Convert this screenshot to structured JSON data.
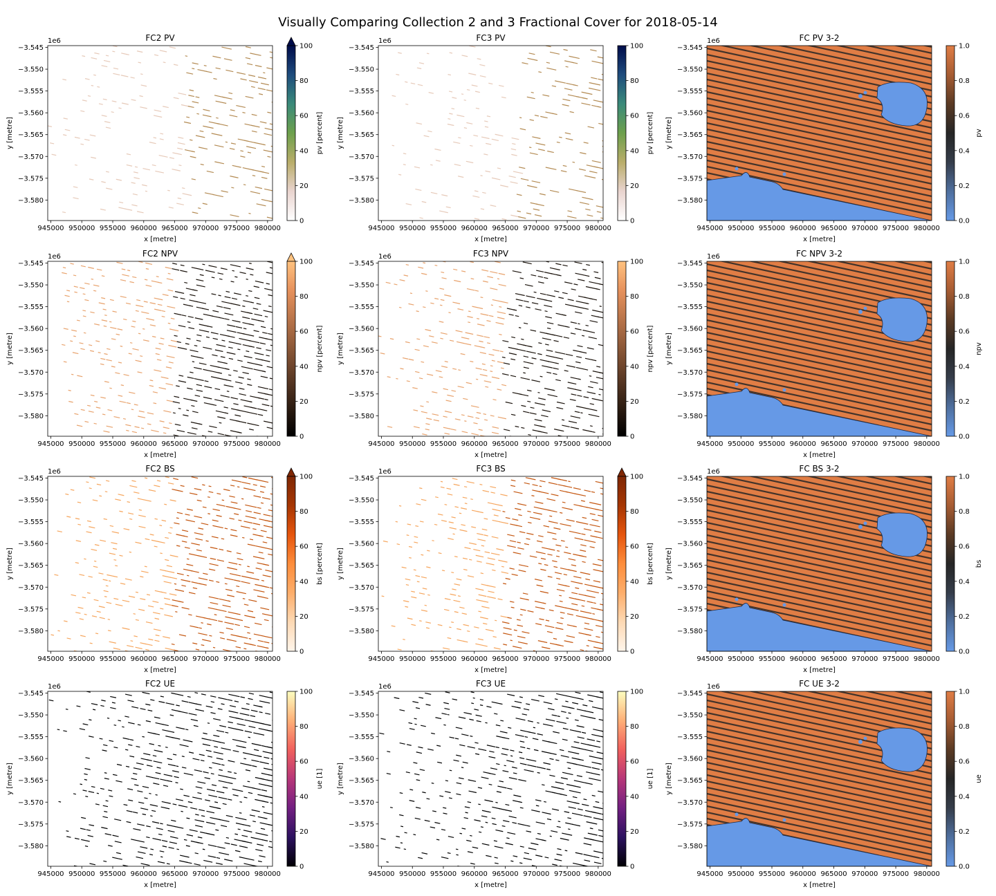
{
  "suptitle": "Visually Comparing Collection 2 and 3 Fractional Cover for 2018-05-14",
  "colors": {
    "diff_low": "#6699e6",
    "diff_mid": "#262626",
    "diff_high": "#e07d45",
    "axis": "#000000"
  },
  "chart_data": [
    {
      "type": "heatmap",
      "title": "FC2 PV",
      "xlabel": "x [metre]",
      "ylabel": "y [metre]",
      "offset_label": "1e6",
      "xlim": [
        944500,
        980800
      ],
      "ylim": [
        -3584700,
        -3544600
      ],
      "xticks": [
        945000,
        950000,
        955000,
        960000,
        965000,
        970000,
        975000,
        980000
      ],
      "xticklabels": [
        "945000",
        "950000",
        "955000",
        "960000",
        "965000",
        "970000",
        "975000",
        "980000"
      ],
      "yticks": [
        -3545,
        -3550,
        -3555,
        -3560,
        -3565,
        -3570,
        -3575,
        -3580
      ],
      "yticklabels": [
        "−3.545",
        "−3.550",
        "−3.555",
        "−3.560",
        "−3.565",
        "−3.570",
        "−3.575",
        "−3.580"
      ],
      "colorbar": {
        "label": "pv [percent]",
        "range": [
          0,
          100
        ],
        "ticks": [
          "0",
          "20",
          "40",
          "60",
          "80",
          "100"
        ],
        "extend": "max",
        "cmap": "gist_earth_r"
      }
    },
    {
      "type": "heatmap",
      "title": "FC3 PV",
      "xlabel": "x [metre]",
      "ylabel": "y [metre]",
      "offset_label": "1e6",
      "xlim": [
        944500,
        980800
      ],
      "ylim": [
        -3584700,
        -3544600
      ],
      "xticks": [
        945000,
        950000,
        955000,
        960000,
        965000,
        970000,
        975000,
        980000
      ],
      "xticklabels": [
        "945000",
        "950000",
        "955000",
        "960000",
        "965000",
        "970000",
        "975000",
        "980000"
      ],
      "yticks": [
        -3545,
        -3550,
        -3555,
        -3560,
        -3565,
        -3570,
        -3575,
        -3580
      ],
      "yticklabels": [
        "−3.545",
        "−3.550",
        "−3.555",
        "−3.560",
        "−3.565",
        "−3.570",
        "−3.575",
        "−3.580"
      ],
      "colorbar": {
        "label": "pv [percent]",
        "range": [
          0,
          100
        ],
        "ticks": [
          "0",
          "20",
          "40",
          "60",
          "80",
          "100"
        ],
        "extend": "neither",
        "cmap": "gist_earth_r"
      }
    },
    {
      "type": "heatmap",
      "title": "FC PV 3-2",
      "xlabel": "x [metre]",
      "ylabel": "y [metre]",
      "offset_label": "1e6",
      "xlim": [
        944500,
        980800
      ],
      "ylim": [
        -3584700,
        -3544600
      ],
      "xticks": [
        945000,
        950000,
        955000,
        960000,
        965000,
        970000,
        975000,
        980000
      ],
      "xticklabels": [
        "945000",
        "950000",
        "955000",
        "960000",
        "965000",
        "970000",
        "975000",
        "980000"
      ],
      "yticks": [
        -3545,
        -3550,
        -3555,
        -3560,
        -3565,
        -3570,
        -3575,
        -3580
      ],
      "yticklabels": [
        "−3.545",
        "−3.550",
        "−3.555",
        "−3.560",
        "−3.565",
        "−3.570",
        "−3.575",
        "−3.580"
      ],
      "colorbar": {
        "label": "pv",
        "range": [
          0,
          1
        ],
        "ticks": [
          "0.0",
          "0.2",
          "0.4",
          "0.6",
          "0.8",
          "1.0"
        ],
        "extend": "neither",
        "cmap": "diverging"
      }
    },
    {
      "type": "heatmap",
      "title": "FC2 NPV",
      "xlabel": "x [metre]",
      "ylabel": "y [metre]",
      "offset_label": "1e6",
      "xlim": [
        944500,
        980800
      ],
      "ylim": [
        -3584700,
        -3544600
      ],
      "xticks": [
        945000,
        950000,
        955000,
        960000,
        965000,
        970000,
        975000,
        980000
      ],
      "xticklabels": [
        "945000",
        "950000",
        "955000",
        "960000",
        "965000",
        "970000",
        "975000",
        "980000"
      ],
      "yticks": [
        -3545,
        -3550,
        -3555,
        -3560,
        -3565,
        -3570,
        -3575,
        -3580
      ],
      "yticklabels": [
        "−3.545",
        "−3.550",
        "−3.555",
        "−3.560",
        "−3.565",
        "−3.570",
        "−3.575",
        "−3.580"
      ],
      "colorbar": {
        "label": "npv [percent]",
        "range": [
          0,
          100
        ],
        "ticks": [
          "0",
          "20",
          "40",
          "60",
          "80",
          "100"
        ],
        "extend": "max",
        "cmap": "copper"
      }
    },
    {
      "type": "heatmap",
      "title": "FC3 NPV",
      "xlabel": "x [metre]",
      "ylabel": "y [metre]",
      "offset_label": "1e6",
      "xlim": [
        944500,
        980800
      ],
      "ylim": [
        -3584700,
        -3544600
      ],
      "xticks": [
        945000,
        950000,
        955000,
        960000,
        965000,
        970000,
        975000,
        980000
      ],
      "xticklabels": [
        "945000",
        "950000",
        "955000",
        "960000",
        "965000",
        "970000",
        "975000",
        "980000"
      ],
      "yticks": [
        -3545,
        -3550,
        -3555,
        -3560,
        -3565,
        -3570,
        -3575,
        -3580
      ],
      "yticklabels": [
        "−3.545",
        "−3.550",
        "−3.555",
        "−3.560",
        "−3.565",
        "−3.570",
        "−3.575",
        "−3.580"
      ],
      "colorbar": {
        "label": "npv [percent]",
        "range": [
          0,
          100
        ],
        "ticks": [
          "0",
          "20",
          "40",
          "60",
          "80",
          "100"
        ],
        "extend": "neither",
        "cmap": "copper"
      }
    },
    {
      "type": "heatmap",
      "title": "FC NPV 3-2",
      "xlabel": "x [metre]",
      "ylabel": "y [metre]",
      "offset_label": "1e6",
      "xlim": [
        944500,
        980800
      ],
      "ylim": [
        -3584700,
        -3544600
      ],
      "xticks": [
        945000,
        950000,
        955000,
        960000,
        965000,
        970000,
        975000,
        980000
      ],
      "xticklabels": [
        "945000",
        "950000",
        "955000",
        "960000",
        "965000",
        "970000",
        "975000",
        "980000"
      ],
      "yticks": [
        -3545,
        -3550,
        -3555,
        -3560,
        -3565,
        -3570,
        -3575,
        -3580
      ],
      "yticklabels": [
        "−3.545",
        "−3.550",
        "−3.555",
        "−3.560",
        "−3.565",
        "−3.570",
        "−3.575",
        "−3.580"
      ],
      "colorbar": {
        "label": "npv",
        "range": [
          0,
          1
        ],
        "ticks": [
          "0.0",
          "0.2",
          "0.4",
          "0.6",
          "0.8",
          "1.0"
        ],
        "extend": "neither",
        "cmap": "diverging"
      }
    },
    {
      "type": "heatmap",
      "title": "FC2 BS",
      "xlabel": "x [metre]",
      "ylabel": "y [metre]",
      "offset_label": "1e6",
      "xlim": [
        944500,
        980800
      ],
      "ylim": [
        -3584700,
        -3544600
      ],
      "xticks": [
        945000,
        950000,
        955000,
        960000,
        965000,
        970000,
        975000,
        980000
      ],
      "xticklabels": [
        "945000",
        "950000",
        "955000",
        "960000",
        "965000",
        "970000",
        "975000",
        "980000"
      ],
      "yticks": [
        -3545,
        -3550,
        -3555,
        -3560,
        -3565,
        -3570,
        -3575,
        -3580
      ],
      "yticklabels": [
        "−3.545",
        "−3.550",
        "−3.555",
        "−3.560",
        "−3.565",
        "−3.570",
        "−3.575",
        "−3.580"
      ],
      "colorbar": {
        "label": "bs [percent]",
        "range": [
          0,
          100
        ],
        "ticks": [
          "0",
          "20",
          "40",
          "60",
          "80",
          "100"
        ],
        "extend": "max",
        "cmap": "Oranges"
      }
    },
    {
      "type": "heatmap",
      "title": "FC3 BS",
      "xlabel": "x [metre]",
      "ylabel": "y [metre]",
      "offset_label": "1e6",
      "xlim": [
        944500,
        980800
      ],
      "ylim": [
        -3584700,
        -3544600
      ],
      "xticks": [
        945000,
        950000,
        955000,
        960000,
        965000,
        970000,
        975000,
        980000
      ],
      "xticklabels": [
        "945000",
        "950000",
        "955000",
        "960000",
        "965000",
        "970000",
        "975000",
        "980000"
      ],
      "yticks": [
        -3545,
        -3550,
        -3555,
        -3560,
        -3565,
        -3570,
        -3575,
        -3580
      ],
      "yticklabels": [
        "−3.545",
        "−3.550",
        "−3.555",
        "−3.560",
        "−3.565",
        "−3.570",
        "−3.575",
        "−3.580"
      ],
      "colorbar": {
        "label": "bs [percent]",
        "range": [
          0,
          100
        ],
        "ticks": [
          "0",
          "20",
          "40",
          "60",
          "80",
          "100"
        ],
        "extend": "max",
        "cmap": "Oranges"
      }
    },
    {
      "type": "heatmap",
      "title": "FC BS 3-2",
      "xlabel": "x [metre]",
      "ylabel": "y [metre]",
      "offset_label": "1e6",
      "xlim": [
        944500,
        980800
      ],
      "ylim": [
        -3584700,
        -3544600
      ],
      "xticks": [
        945000,
        950000,
        955000,
        960000,
        965000,
        970000,
        975000,
        980000
      ],
      "xticklabels": [
        "945000",
        "950000",
        "955000",
        "960000",
        "965000",
        "970000",
        "975000",
        "980000"
      ],
      "yticks": [
        -3545,
        -3550,
        -3555,
        -3560,
        -3565,
        -3570,
        -3575,
        -3580
      ],
      "yticklabels": [
        "−3.545",
        "−3.550",
        "−3.555",
        "−3.560",
        "−3.565",
        "−3.570",
        "−3.575",
        "−3.580"
      ],
      "colorbar": {
        "label": "bs",
        "range": [
          0,
          1
        ],
        "ticks": [
          "0.0",
          "0.2",
          "0.4",
          "0.6",
          "0.8",
          "1.0"
        ],
        "extend": "neither",
        "cmap": "diverging"
      }
    },
    {
      "type": "heatmap",
      "title": "FC2 UE",
      "xlabel": "x [metre]",
      "ylabel": "y [metre]",
      "offset_label": "1e6",
      "xlim": [
        944500,
        980800
      ],
      "ylim": [
        -3584700,
        -3544600
      ],
      "xticks": [
        945000,
        950000,
        955000,
        960000,
        965000,
        970000,
        975000,
        980000
      ],
      "xticklabels": [
        "945000",
        "950000",
        "955000",
        "960000",
        "965000",
        "970000",
        "975000",
        "980000"
      ],
      "yticks": [
        -3545,
        -3550,
        -3555,
        -3560,
        -3565,
        -3570,
        -3575,
        -3580
      ],
      "yticklabels": [
        "−3.545",
        "−3.550",
        "−3.555",
        "−3.560",
        "−3.565",
        "−3.570",
        "−3.575",
        "−3.580"
      ],
      "colorbar": {
        "label": "ue [1]",
        "range": [
          0,
          100
        ],
        "ticks": [
          "0",
          "20",
          "40",
          "60",
          "80",
          "100"
        ],
        "extend": "neither",
        "cmap": "magma"
      }
    },
    {
      "type": "heatmap",
      "title": "FC3 UE",
      "xlabel": "x [metre]",
      "ylabel": "y [metre]",
      "offset_label": "1e6",
      "xlim": [
        944500,
        980800
      ],
      "ylim": [
        -3584700,
        -3544600
      ],
      "xticks": [
        945000,
        950000,
        955000,
        960000,
        965000,
        970000,
        975000,
        980000
      ],
      "xticklabels": [
        "945000",
        "950000",
        "955000",
        "960000",
        "965000",
        "970000",
        "975000",
        "980000"
      ],
      "yticks": [
        -3545,
        -3550,
        -3555,
        -3560,
        -3565,
        -3570,
        -3575,
        -3580
      ],
      "yticklabels": [
        "−3.545",
        "−3.550",
        "−3.555",
        "−3.560",
        "−3.565",
        "−3.570",
        "−3.575",
        "−3.580"
      ],
      "colorbar": {
        "label": "ue [1]",
        "range": [
          0,
          100
        ],
        "ticks": [
          "0",
          "20",
          "40",
          "60",
          "80",
          "100"
        ],
        "extend": "neither",
        "cmap": "magma"
      }
    },
    {
      "type": "heatmap",
      "title": "FC UE 3-2",
      "xlabel": "x [metre]",
      "ylabel": "y [metre]",
      "offset_label": "1e6",
      "xlim": [
        944500,
        980800
      ],
      "ylim": [
        -3584700,
        -3544600
      ],
      "xticks": [
        945000,
        950000,
        955000,
        960000,
        965000,
        970000,
        975000,
        980000
      ],
      "xticklabels": [
        "945000",
        "950000",
        "955000",
        "960000",
        "965000",
        "970000",
        "975000",
        "980000"
      ],
      "yticks": [
        -3545,
        -3550,
        -3555,
        -3560,
        -3565,
        -3570,
        -3575,
        -3580
      ],
      "yticklabels": [
        "−3.545",
        "−3.550",
        "−3.555",
        "−3.560",
        "−3.565",
        "−3.570",
        "−3.575",
        "−3.580"
      ],
      "colorbar": {
        "label": "ue",
        "range": [
          0,
          1
        ],
        "ticks": [
          "0.0",
          "0.2",
          "0.4",
          "0.6",
          "0.8",
          "1.0"
        ],
        "extend": "neither",
        "cmap": "diverging"
      }
    }
  ]
}
